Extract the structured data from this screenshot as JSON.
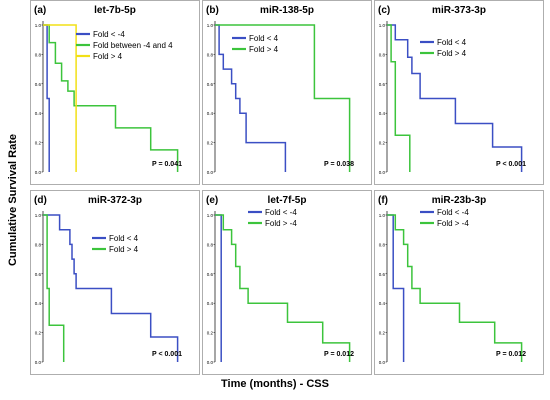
{
  "figure": {
    "ylabel": "Cumulative Survival Rate",
    "xlabel": "Time (months) - CSS"
  },
  "colors": {
    "blue": "#3b4fc4",
    "green": "#3cc43c",
    "yellow": "#f2e016"
  },
  "chart_data": [
    {
      "type": "line",
      "panel_label": "(a)",
      "title": "let-7b-5p",
      "xlim": [
        0,
        70
      ],
      "ylim": [
        0,
        1.0
      ],
      "yticks": [
        "0.0",
        "0.2",
        "0.4",
        "0.6",
        "0.8",
        "1.0"
      ],
      "pvalue": "P = 0.041",
      "series": [
        {
          "name": "Fold < -4",
          "color": "blue",
          "x": [
            0,
            2,
            2,
            3,
            3
          ],
          "y": [
            1.0,
            1.0,
            0.5,
            0.5,
            0.0
          ]
        },
        {
          "name": "Fold between -4 and 4",
          "color": "green",
          "x": [
            0,
            3,
            3,
            6,
            6,
            9,
            9,
            12,
            12,
            15,
            15,
            35,
            35,
            52,
            52,
            65,
            65
          ],
          "y": [
            1.0,
            1.0,
            0.88,
            0.88,
            0.74,
            0.74,
            0.62,
            0.62,
            0.55,
            0.55,
            0.45,
            0.45,
            0.3,
            0.3,
            0.15,
            0.15,
            0.0
          ]
        },
        {
          "name": "Fold > 4",
          "color": "yellow",
          "x": [
            0,
            16,
            16
          ],
          "y": [
            1.0,
            1.0,
            0.0
          ]
        }
      ]
    },
    {
      "type": "line",
      "panel_label": "(b)",
      "title": "miR-138-5p",
      "xlim": [
        0,
        70
      ],
      "ylim": [
        0,
        1.0
      ],
      "yticks": [
        "0.0",
        "0.2",
        "0.4",
        "0.6",
        "0.8",
        "1.0"
      ],
      "pvalue": "P = 0.038",
      "series": [
        {
          "name": "Fold < 4",
          "color": "blue",
          "x": [
            0,
            2,
            2,
            4,
            4,
            8,
            8,
            10,
            10,
            12,
            12,
            15,
            15,
            34,
            34
          ],
          "y": [
            1.0,
            1.0,
            0.8,
            0.8,
            0.7,
            0.7,
            0.6,
            0.6,
            0.5,
            0.5,
            0.4,
            0.4,
            0.2,
            0.2,
            0.0
          ]
        },
        {
          "name": "Fold > 4",
          "color": "green",
          "x": [
            0,
            48,
            48,
            65,
            65
          ],
          "y": [
            1.0,
            1.0,
            0.5,
            0.5,
            0.0
          ]
        }
      ]
    },
    {
      "type": "line",
      "panel_label": "(c)",
      "title": "miR-373-3p",
      "xlim": [
        0,
        70
      ],
      "ylim": [
        0,
        1.0
      ],
      "yticks": [
        "0.0",
        "0.2",
        "0.4",
        "0.6",
        "0.8",
        "1.0"
      ],
      "pvalue": "P < 0.001",
      "series": [
        {
          "name": "Fold < 4",
          "color": "blue",
          "x": [
            0,
            4,
            4,
            10,
            10,
            12,
            12,
            16,
            16,
            33,
            33,
            51,
            51,
            65,
            65
          ],
          "y": [
            1.0,
            1.0,
            0.9,
            0.9,
            0.78,
            0.78,
            0.67,
            0.67,
            0.5,
            0.5,
            0.33,
            0.33,
            0.17,
            0.17,
            0.0
          ]
        },
        {
          "name": "Fold > 4",
          "color": "green",
          "x": [
            0,
            2,
            2,
            4,
            4,
            11,
            11
          ],
          "y": [
            1.0,
            1.0,
            0.75,
            0.75,
            0.25,
            0.25,
            0.0
          ]
        }
      ]
    },
    {
      "type": "line",
      "panel_label": "(d)",
      "title": "miR-372-3p",
      "xlim": [
        0,
        70
      ],
      "ylim": [
        0,
        1.0
      ],
      "yticks": [
        "0.0",
        "0.2",
        "0.4",
        "0.6",
        "0.8",
        "1.0"
      ],
      "pvalue": "P < 0.001",
      "series": [
        {
          "name": "Fold < 4",
          "color": "blue",
          "x": [
            0,
            8,
            8,
            13,
            13,
            14,
            14,
            15,
            15,
            16,
            16,
            33,
            33,
            52,
            52,
            65,
            65
          ],
          "y": [
            1.0,
            1.0,
            0.9,
            0.9,
            0.8,
            0.8,
            0.7,
            0.7,
            0.6,
            0.6,
            0.5,
            0.5,
            0.33,
            0.33,
            0.17,
            0.17,
            0.0
          ]
        },
        {
          "name": "Fold > 4",
          "color": "green",
          "x": [
            0,
            2,
            2,
            3,
            3,
            10,
            10
          ],
          "y": [
            1.0,
            1.0,
            0.5,
            0.5,
            0.25,
            0.25,
            0.0
          ]
        }
      ]
    },
    {
      "type": "line",
      "panel_label": "(e)",
      "title": "let-7f-5p",
      "xlim": [
        0,
        70
      ],
      "ylim": [
        0,
        1.0
      ],
      "yticks": [
        "0.0",
        "0.2",
        "0.4",
        "0.6",
        "0.8",
        "1.0"
      ],
      "pvalue": "P = 0.012",
      "series": [
        {
          "name": "Fold < -4",
          "color": "blue",
          "x": [
            0,
            3,
            3
          ],
          "y": [
            1.0,
            1.0,
            0.0
          ]
        },
        {
          "name": "Fold > -4",
          "color": "green",
          "x": [
            0,
            4,
            4,
            8,
            8,
            10,
            10,
            12,
            12,
            16,
            16,
            35,
            35,
            52,
            52,
            65,
            65
          ],
          "y": [
            1.0,
            1.0,
            0.9,
            0.9,
            0.8,
            0.8,
            0.65,
            0.65,
            0.5,
            0.5,
            0.4,
            0.4,
            0.27,
            0.27,
            0.13,
            0.13,
            0.0
          ]
        }
      ]
    },
    {
      "type": "line",
      "panel_label": "(f)",
      "title": "miR-23b-3p",
      "xlim": [
        0,
        70
      ],
      "ylim": [
        0,
        1.0
      ],
      "yticks": [
        "0.0",
        "0.2",
        "0.4",
        "0.6",
        "0.8",
        "1.0"
      ],
      "pvalue": "P = 0.012",
      "series": [
        {
          "name": "Fold < -4",
          "color": "blue",
          "x": [
            0,
            3,
            3,
            8,
            8
          ],
          "y": [
            1.0,
            1.0,
            0.5,
            0.5,
            0.0
          ]
        },
        {
          "name": "Fold > -4",
          "color": "green",
          "x": [
            0,
            4,
            4,
            8,
            8,
            10,
            10,
            12,
            12,
            16,
            16,
            35,
            35,
            52,
            52,
            65,
            65
          ],
          "y": [
            1.0,
            1.0,
            0.9,
            0.9,
            0.8,
            0.8,
            0.65,
            0.65,
            0.5,
            0.5,
            0.4,
            0.4,
            0.27,
            0.27,
            0.13,
            0.13,
            0.0
          ]
        }
      ]
    }
  ]
}
